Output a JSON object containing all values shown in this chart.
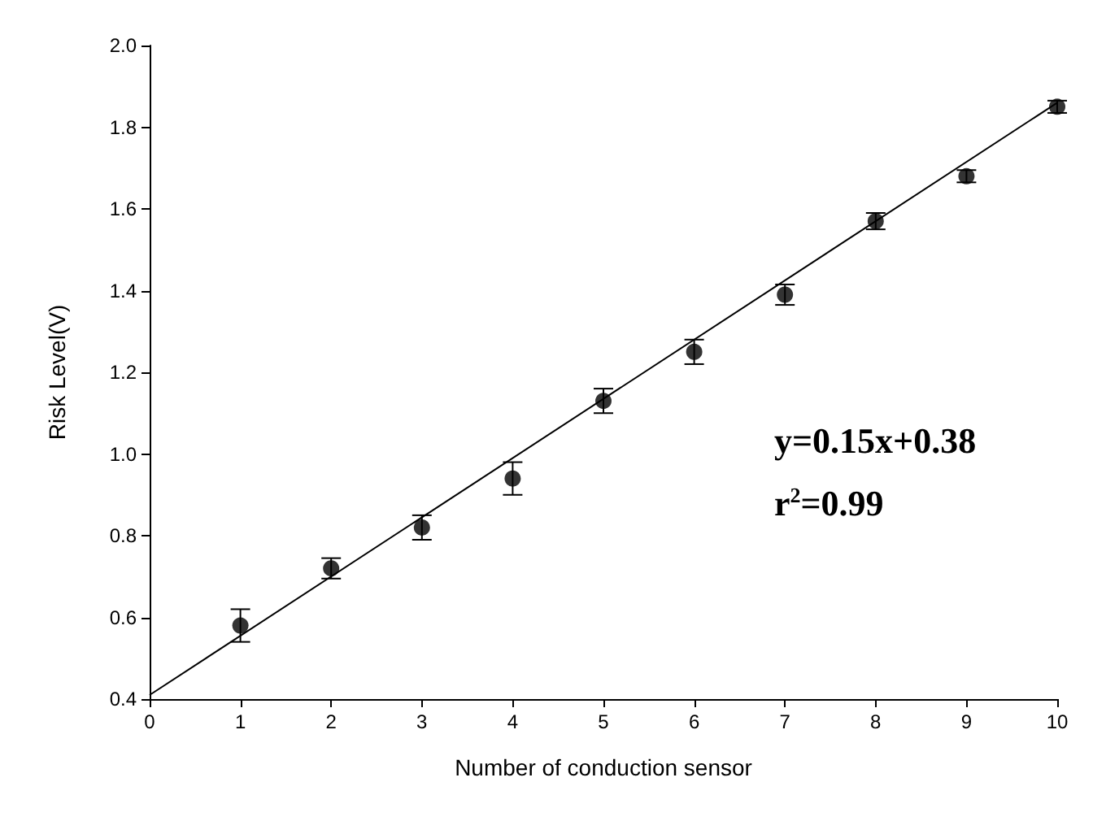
{
  "chart_data": {
    "type": "scatter",
    "xlabel": "Number of conduction sensor",
    "ylabel": "Risk Level(V)",
    "xlim": [
      0,
      10
    ],
    "xticks": [
      0,
      1,
      2,
      3,
      4,
      5,
      6,
      7,
      8,
      9,
      10
    ],
    "ylim": [
      0.4,
      2.0
    ],
    "yticks": [
      0.4,
      0.6,
      0.8,
      {
        "value": 1,
        "label": "1.0"
      },
      1.2,
      1.4,
      1.6,
      1.8,
      {
        "value": 2,
        "label": "2.0"
      }
    ],
    "grid": false,
    "annotations": [
      "y=0.15x+0.38",
      "r$^{2}$=0.99"
    ],
    "series": [
      {
        "marker": "circle",
        "color": "#000000",
        "x": [
          1,
          2,
          3,
          4,
          5,
          6,
          7,
          8,
          9,
          10
        ],
        "values": [
          0.58,
          0.72,
          0.82,
          0.94,
          1.13,
          1.25,
          1.39,
          1.57,
          1.68,
          1.85
        ],
        "errors": [
          0.04,
          0.025,
          0.03,
          0.04,
          0.03,
          0.03,
          0.025,
          0.02,
          0.015,
          0.015
        ]
      },
      {
        "type": "line",
        "color": "#000000",
        "x": [
          0,
          10
        ],
        "values": [
          0.41,
          1.86
        ]
      }
    ]
  }
}
